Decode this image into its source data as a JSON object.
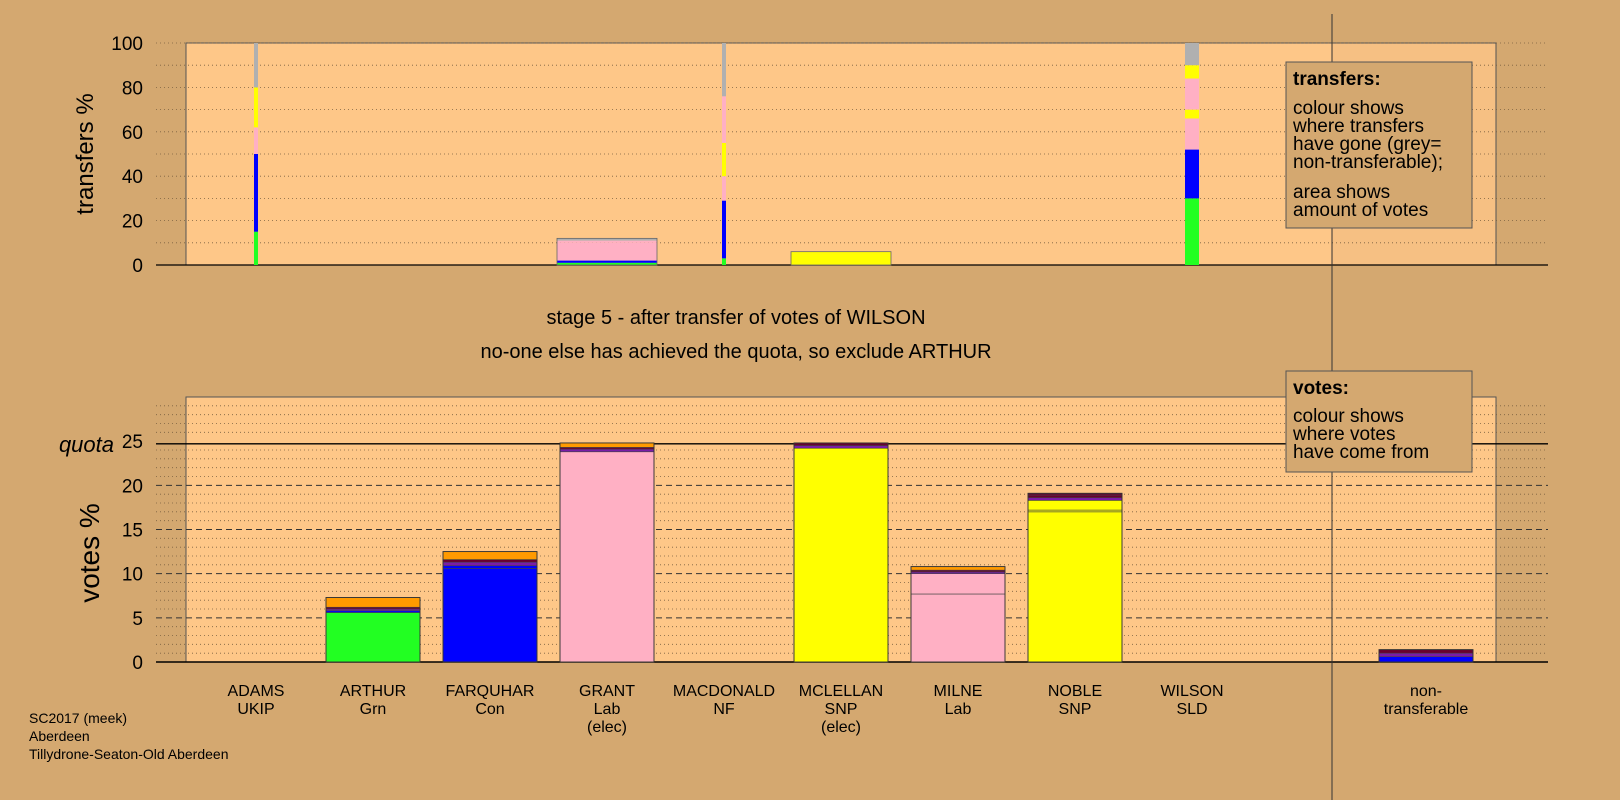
{
  "chart_data": [
    {
      "type": "bar",
      "name": "transfers",
      "ylabel": "transfers %",
      "ylim": [
        0,
        100
      ],
      "yticks": [
        0,
        20,
        40,
        60,
        80,
        100
      ],
      "categories": [
        "ADAMS UKIP",
        "ARTHUR Grn",
        "FARQUHAR Con",
        "GRANT Lab (elec)",
        "MACDONALD NF",
        "MCLELLAN SNP (elec)",
        "MILNE Lab",
        "NOBLE SNP",
        "WILSON SLD",
        "non-transferable"
      ],
      "transfer_bars": [
        {
          "slot": 0,
          "width": "thin",
          "segments": [
            [
              0,
              15,
              "green"
            ],
            [
              15,
              50,
              "blue"
            ],
            [
              50,
              62,
              "pink"
            ],
            [
              62,
              65,
              "yellow"
            ],
            [
              65,
              80,
              "yellow"
            ],
            [
              80,
              100,
              "grey"
            ]
          ]
        },
        {
          "slot": 3,
          "width": "wide",
          "segments": [
            [
              0,
              1,
              "green"
            ],
            [
              1,
              2,
              "blue"
            ],
            [
              2,
              10,
              "pink"
            ],
            [
              10,
              11,
              "pink"
            ],
            [
              11,
              12,
              "grey"
            ]
          ]
        },
        {
          "slot": 4,
          "width": "thin",
          "segments": [
            [
              0,
              3,
              "green"
            ],
            [
              3,
              29,
              "blue"
            ],
            [
              29,
              40,
              "pink"
            ],
            [
              40,
              55,
              "yellow"
            ],
            [
              55,
              76,
              "pink"
            ],
            [
              76,
              100,
              "grey"
            ]
          ]
        },
        {
          "slot": 5,
          "width": "wide",
          "segments": [
            [
              0,
              5,
              "yellow"
            ],
            [
              5,
              6,
              "yellow"
            ]
          ]
        },
        {
          "slot": 8,
          "width": "medium",
          "segments": [
            [
              0,
              30,
              "green"
            ],
            [
              30,
              52,
              "blue"
            ],
            [
              52,
              66,
              "pink"
            ],
            [
              66,
              70,
              "yellow"
            ],
            [
              70,
              84,
              "pink"
            ],
            [
              84,
              90,
              "yellow"
            ],
            [
              90,
              100,
              "grey"
            ]
          ]
        }
      ],
      "legend_box": {
        "title": "transfers:",
        "lines1": [
          "colour shows",
          "where transfers",
          "have gone (grey=",
          "non-transferable);"
        ],
        "lines2": [
          "area shows",
          "amount of votes"
        ]
      }
    },
    {
      "type": "bar",
      "name": "votes",
      "ylabel": "votes %",
      "ylim": [
        0,
        30
      ],
      "yticks": [
        0,
        5,
        10,
        15,
        20,
        25
      ],
      "quota": 24.7,
      "quota_label": "quota",
      "categories": [
        {
          "label": [
            "ADAMS",
            "UKIP"
          ]
        },
        {
          "label": [
            "ARTHUR",
            "Grn"
          ]
        },
        {
          "label": [
            "FARQUHAR",
            "Con"
          ]
        },
        {
          "label": [
            "GRANT",
            "Lab",
            "(elec)"
          ]
        },
        {
          "label": [
            "MACDONALD",
            "NF"
          ]
        },
        {
          "label": [
            "MCLELLAN",
            "SNP",
            "(elec)"
          ]
        },
        {
          "label": [
            "MILNE",
            "Lab"
          ]
        },
        {
          "label": [
            "NOBLE",
            "SNP"
          ]
        },
        {
          "label": [
            "WILSON",
            "SLD"
          ]
        },
        {
          "label": [
            "",
            ""
          ]
        },
        {
          "label": [
            "non-",
            "transferable"
          ]
        }
      ],
      "vote_bars": [
        {
          "slot": 1,
          "segments": [
            [
              0,
              5.6,
              "green"
            ],
            [
              5.6,
              5.8,
              "blue"
            ],
            [
              5.8,
              6.0,
              "purple"
            ],
            [
              6.0,
              6.2,
              "darkred"
            ],
            [
              6.2,
              7.3,
              "orange"
            ]
          ]
        },
        {
          "slot": 2,
          "segments": [
            [
              0,
              10.6,
              "blue"
            ],
            [
              10.6,
              10.9,
              "blue"
            ],
            [
              10.9,
              11.3,
              "purple"
            ],
            [
              11.3,
              11.6,
              "darkred"
            ],
            [
              11.6,
              12.5,
              "orange"
            ]
          ]
        },
        {
          "slot": 3,
          "segments": [
            [
              0,
              23.8,
              "pink"
            ],
            [
              23.8,
              24.1,
              "purple"
            ],
            [
              24.1,
              24.3,
              "darkred"
            ],
            [
              24.3,
              24.8,
              "orange"
            ]
          ]
        },
        {
          "slot": 5,
          "segments": [
            [
              0,
              24.2,
              "yellow"
            ],
            [
              24.2,
              24.5,
              "purple"
            ],
            [
              24.5,
              24.8,
              "darkred"
            ]
          ]
        },
        {
          "slot": 6,
          "segments": [
            [
              0,
              7.7,
              "pink"
            ],
            [
              7.7,
              10.0,
              "pink"
            ],
            [
              10.0,
              10.2,
              "purple"
            ],
            [
              10.2,
              10.4,
              "darkred"
            ],
            [
              10.4,
              10.8,
              "orange"
            ]
          ]
        },
        {
          "slot": 7,
          "segments": [
            [
              0,
              17.0,
              "yellow"
            ],
            [
              17.0,
              17.2,
              "yellow"
            ],
            [
              17.2,
              18.3,
              "yellow"
            ],
            [
              18.3,
              18.6,
              "purple"
            ],
            [
              18.6,
              18.9,
              "darkred"
            ],
            [
              18.9,
              19.1,
              "darkred"
            ]
          ]
        },
        {
          "slot": 10,
          "segments": [
            [
              0,
              0.6,
              "blue"
            ],
            [
              0.6,
              1.0,
              "purple"
            ],
            [
              1.0,
              1.4,
              "darkred"
            ]
          ]
        }
      ],
      "legend_box": {
        "title": "votes:",
        "lines": [
          "colour shows",
          "where votes",
          "have come from"
        ]
      }
    }
  ],
  "colors": {
    "background": "#d4a870",
    "plot_bg": "#fec788",
    "green": "#22ff22",
    "blue": "#0000ff",
    "pink": "#ffb0c4",
    "yellow": "#ffff00",
    "grey": "#b0b0b0",
    "orange": "#ff9a00",
    "purple": "#7a1ca8",
    "darkred": "#6a0030"
  },
  "stage_title": "stage 5 - after transfer of votes of WILSON",
  "stage_subtitle": "no-one else has achieved the quota, so exclude ARTHUR",
  "footer": [
    "SC2017 (meek)",
    "Aberdeen",
    "Tillydrone-Seaton-Old Aberdeen"
  ]
}
